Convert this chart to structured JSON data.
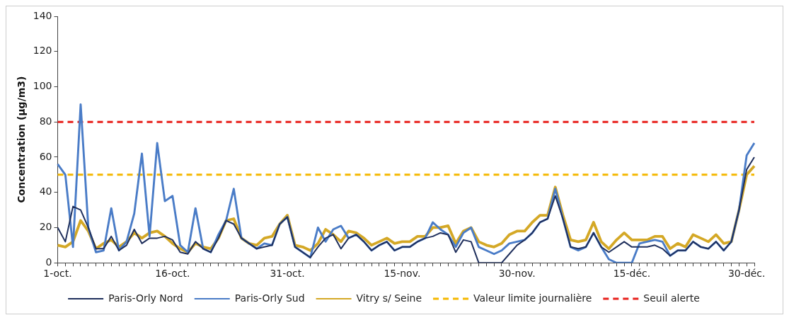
{
  "chart_data": {
    "type": "line",
    "categories": [
      "1-oct.",
      null,
      null,
      null,
      null,
      null,
      null,
      null,
      null,
      null,
      null,
      null,
      null,
      null,
      null,
      "16-oct.",
      null,
      null,
      null,
      null,
      null,
      null,
      null,
      null,
      null,
      null,
      null,
      null,
      null,
      null,
      "31-oct.",
      null,
      null,
      null,
      null,
      null,
      null,
      null,
      null,
      null,
      null,
      null,
      null,
      null,
      null,
      "15-nov.",
      null,
      null,
      null,
      null,
      null,
      null,
      null,
      null,
      null,
      null,
      null,
      null,
      null,
      null,
      "30-nov.",
      null,
      null,
      null,
      null,
      null,
      null,
      null,
      null,
      null,
      null,
      null,
      null,
      null,
      null,
      "15-déc.",
      null,
      null,
      null,
      null,
      null,
      null,
      null,
      null,
      null,
      null,
      null,
      null,
      null,
      null,
      "30-déc.",
      null
    ],
    "ylabel": "Concentration (µg/m3)",
    "ylim": [
      0,
      140
    ],
    "yticks": [
      0,
      20,
      40,
      60,
      80,
      100,
      120,
      140
    ],
    "grid": false,
    "legend": "bottom",
    "series": [
      {
        "name": "Paris-Orly Nord",
        "color": "#1f2f5c",
        "values": [
          20,
          12,
          32,
          30,
          20,
          8,
          8,
          15,
          7,
          10,
          19,
          11,
          14,
          14,
          15,
          13,
          6,
          5,
          12,
          8,
          6,
          14,
          24,
          22,
          14,
          11,
          8,
          9,
          10,
          22,
          26,
          9,
          6,
          3,
          9,
          14,
          16,
          8,
          14,
          16,
          12,
          7,
          10,
          12,
          7,
          9,
          9,
          12,
          14,
          15,
          17,
          16,
          6,
          13,
          12,
          0,
          0,
          0,
          0,
          5,
          10,
          13,
          17,
          23,
          25,
          38,
          25,
          9,
          8,
          9,
          17,
          9,
          6,
          9,
          12,
          9,
          9,
          9,
          10,
          8,
          4,
          7,
          7,
          12,
          9,
          8,
          12,
          7,
          12,
          30,
          53,
          60
        ]
      },
      {
        "name": "Paris-Orly Sud",
        "color": "#4a7cc7",
        "values": [
          56,
          50,
          9,
          90,
          20,
          6,
          7,
          31,
          7,
          12,
          28,
          62,
          15,
          68,
          35,
          38,
          10,
          6,
          31,
          8,
          6,
          16,
          24,
          42,
          14,
          11,
          8,
          11,
          10,
          22,
          26,
          9,
          6,
          3,
          20,
          12,
          19,
          21,
          14,
          16,
          12,
          7,
          10,
          12,
          7,
          9,
          9,
          12,
          14,
          23,
          19,
          16,
          9,
          17,
          20,
          9,
          7,
          5,
          7,
          11,
          12,
          13,
          17,
          23,
          25,
          42,
          25,
          9,
          7,
          9,
          17,
          9,
          2,
          0,
          0,
          0,
          11,
          12,
          13,
          12,
          4,
          7,
          7,
          12,
          9,
          8,
          12,
          7,
          12,
          30,
          61,
          68
        ]
      },
      {
        "name": "Vitry s/ Seine",
        "color": "#d4a826",
        "values": [
          10,
          9,
          12,
          24,
          18,
          8,
          11,
          13,
          9,
          12,
          17,
          14,
          17,
          18,
          15,
          11,
          8,
          6,
          11,
          9,
          8,
          14,
          24,
          25,
          14,
          11,
          10,
          14,
          15,
          22,
          27,
          10,
          9,
          7,
          11,
          19,
          16,
          12,
          18,
          17,
          14,
          10,
          12,
          14,
          11,
          12,
          12,
          15,
          15,
          20,
          20,
          21,
          11,
          18,
          20,
          12,
          10,
          9,
          11,
          16,
          18,
          18,
          23,
          27,
          27,
          43,
          27,
          13,
          12,
          13,
          23,
          12,
          8,
          13,
          17,
          13,
          13,
          13,
          15,
          15,
          8,
          11,
          9,
          16,
          14,
          12,
          16,
          11,
          12,
          30,
          50,
          55
        ]
      }
    ],
    "ref_lines": [
      {
        "axis": "y",
        "value": 50,
        "label": "Valeur limite journalière",
        "color": "#f5b800",
        "line_style": "dashed"
      },
      {
        "axis": "y",
        "value": 80,
        "label": "Seuil alerte",
        "color": "#e8211c",
        "line_style": "dashed"
      }
    ]
  }
}
